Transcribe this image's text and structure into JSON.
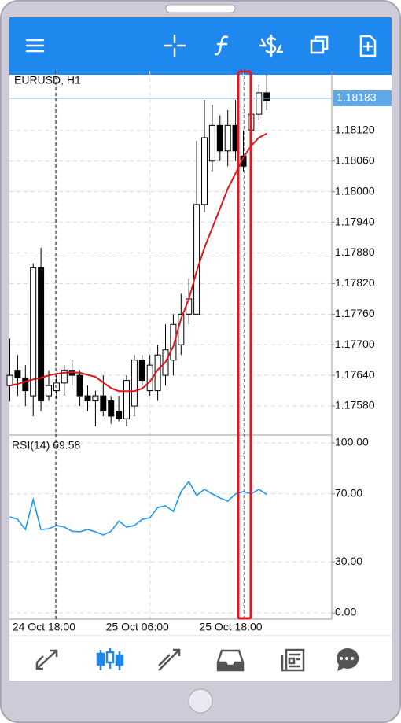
{
  "chart_data": {
    "type": "candlestick",
    "title": "EURUSD, H1",
    "categories": [
      null,
      null,
      null,
      null,
      null,
      null,
      "24 Oct 18:00",
      null,
      null,
      null,
      null,
      null,
      null,
      null,
      null,
      null,
      null,
      null,
      "25 Oct 06:00",
      null,
      null,
      null,
      null,
      null,
      null,
      null,
      null,
      null,
      null,
      null,
      "25 Oct 18:00",
      null,
      null,
      null
    ],
    "open": [
      1.1762,
      1.1765,
      1.17635,
      1.176,
      1.17851,
      1.176,
      1.1761,
      1.17625,
      1.1765,
      1.1764,
      1.176,
      1.1759,
      1.176,
      1.1759,
      1.1757,
      1.17555,
      1.1758,
      1.1767,
      1.1761,
      1.1761,
      1.1764,
      1.1767,
      1.177,
      1.1776,
      1.1776,
      1.17975,
      1.1806,
      1.1813,
      1.1808,
      1.1813,
      1.1807,
      1.18121,
      1.18152,
      1.18194
    ],
    "high": [
      1.17712,
      1.1768,
      1.1766,
      1.1786,
      1.1789,
      1.1765,
      1.1764,
      1.1766,
      1.1767,
      1.1765,
      1.1762,
      1.1761,
      1.1764,
      1.176,
      1.176,
      1.1764,
      1.1768,
      1.1768,
      1.1768,
      1.177,
      1.1774,
      1.1776,
      1.178,
      1.1783,
      1.181,
      1.1818,
      1.1817,
      1.1815,
      1.1816,
      1.1818,
      1.1812,
      1.1818,
      1.1821,
      1.18229
    ],
    "low": [
      1.17589,
      1.176,
      1.1758,
      1.1756,
      1.1757,
      1.1759,
      1.17595,
      1.176,
      1.1762,
      1.1758,
      1.1757,
      1.1754,
      1.1756,
      1.17545,
      1.1755,
      1.1754,
      1.1756,
      1.1762,
      1.176,
      1.1759,
      1.1762,
      1.1764,
      1.1768,
      1.1774,
      1.1776,
      1.1796,
      1.1804,
      1.1806,
      1.1805,
      1.1806,
      1.1804,
      1.1806,
      1.1814,
      1.1816
    ],
    "close": [
      1.1764,
      1.17635,
      1.1761,
      1.17851,
      1.1759,
      1.1762,
      1.17625,
      1.1765,
      1.1764,
      1.176,
      1.1759,
      1.176,
      1.1757,
      1.1756,
      1.17555,
      1.1763,
      1.1767,
      1.1763,
      1.1766,
      1.1768,
      1.1769,
      1.1774,
      1.1776,
      1.1779,
      1.17975,
      1.18106,
      1.1813,
      1.1808,
      1.1813,
      1.1808,
      1.1805,
      1.18152,
      1.18194,
      1.18178
    ],
    "up_color": "#ffffff",
    "down_color": "#000000",
    "ylim": [
      1.17523,
      1.18237
    ],
    "yticks": [
      {
        "value": 1.1758,
        "label": "1.17580"
      },
      {
        "value": 1.1764,
        "label": "1.17640"
      },
      {
        "value": 1.177,
        "label": "1.17700"
      },
      {
        "value": 1.1776,
        "label": "1.17760"
      },
      {
        "value": 1.1782,
        "label": "1.17820"
      },
      {
        "value": 1.1788,
        "label": "1.17880"
      },
      {
        "value": 1.1794,
        "label": "1.17940"
      },
      {
        "value": 1.18,
        "label": "1.18000"
      },
      {
        "value": 1.1806,
        "label": "1.18060"
      },
      {
        "value": 1.1812,
        "label": "1.18120"
      }
    ],
    "current_price": 1.18183,
    "grid": true,
    "moving_average": {
      "color": "#e3161b",
      "values": [
        1.1762,
        1.17623,
        1.17628,
        1.17632,
        1.17635,
        1.1764,
        1.17643,
        1.17645,
        1.17646,
        1.17645,
        1.17641,
        1.17637,
        1.17626,
        1.17615,
        1.17609,
        1.17609,
        1.17609,
        1.17614,
        1.17628,
        1.17651,
        1.17666,
        1.17697,
        1.17751,
        1.1779,
        1.17844,
        1.1789,
        1.17929,
        1.17967,
        1.18006,
        1.18036,
        1.18067,
        1.1809,
        1.18106,
        1.18114
      ]
    },
    "rsi": {
      "name": "RSI(14)",
      "color": "#2196f3",
      "values": [
        56.5,
        55,
        49,
        66.7,
        49,
        49.5,
        51.4,
        50.5,
        48,
        47.7,
        49,
        47.7,
        45.8,
        48,
        54,
        50.5,
        51.4,
        55,
        56,
        62,
        63,
        59.7,
        71.3,
        77.3,
        69,
        72.7,
        70,
        67.6,
        65.7,
        70,
        71.3,
        70,
        72.7,
        69.58
      ],
      "ylim": [
        -3.7,
        104.6
      ],
      "yticks": [
        {
          "value": 100,
          "label": "100.00"
        },
        {
          "value": 70,
          "label": "70.00"
        },
        {
          "value": 30,
          "label": "30.00"
        },
        {
          "value": 0,
          "label": "0.00"
        }
      ]
    }
  }
}
